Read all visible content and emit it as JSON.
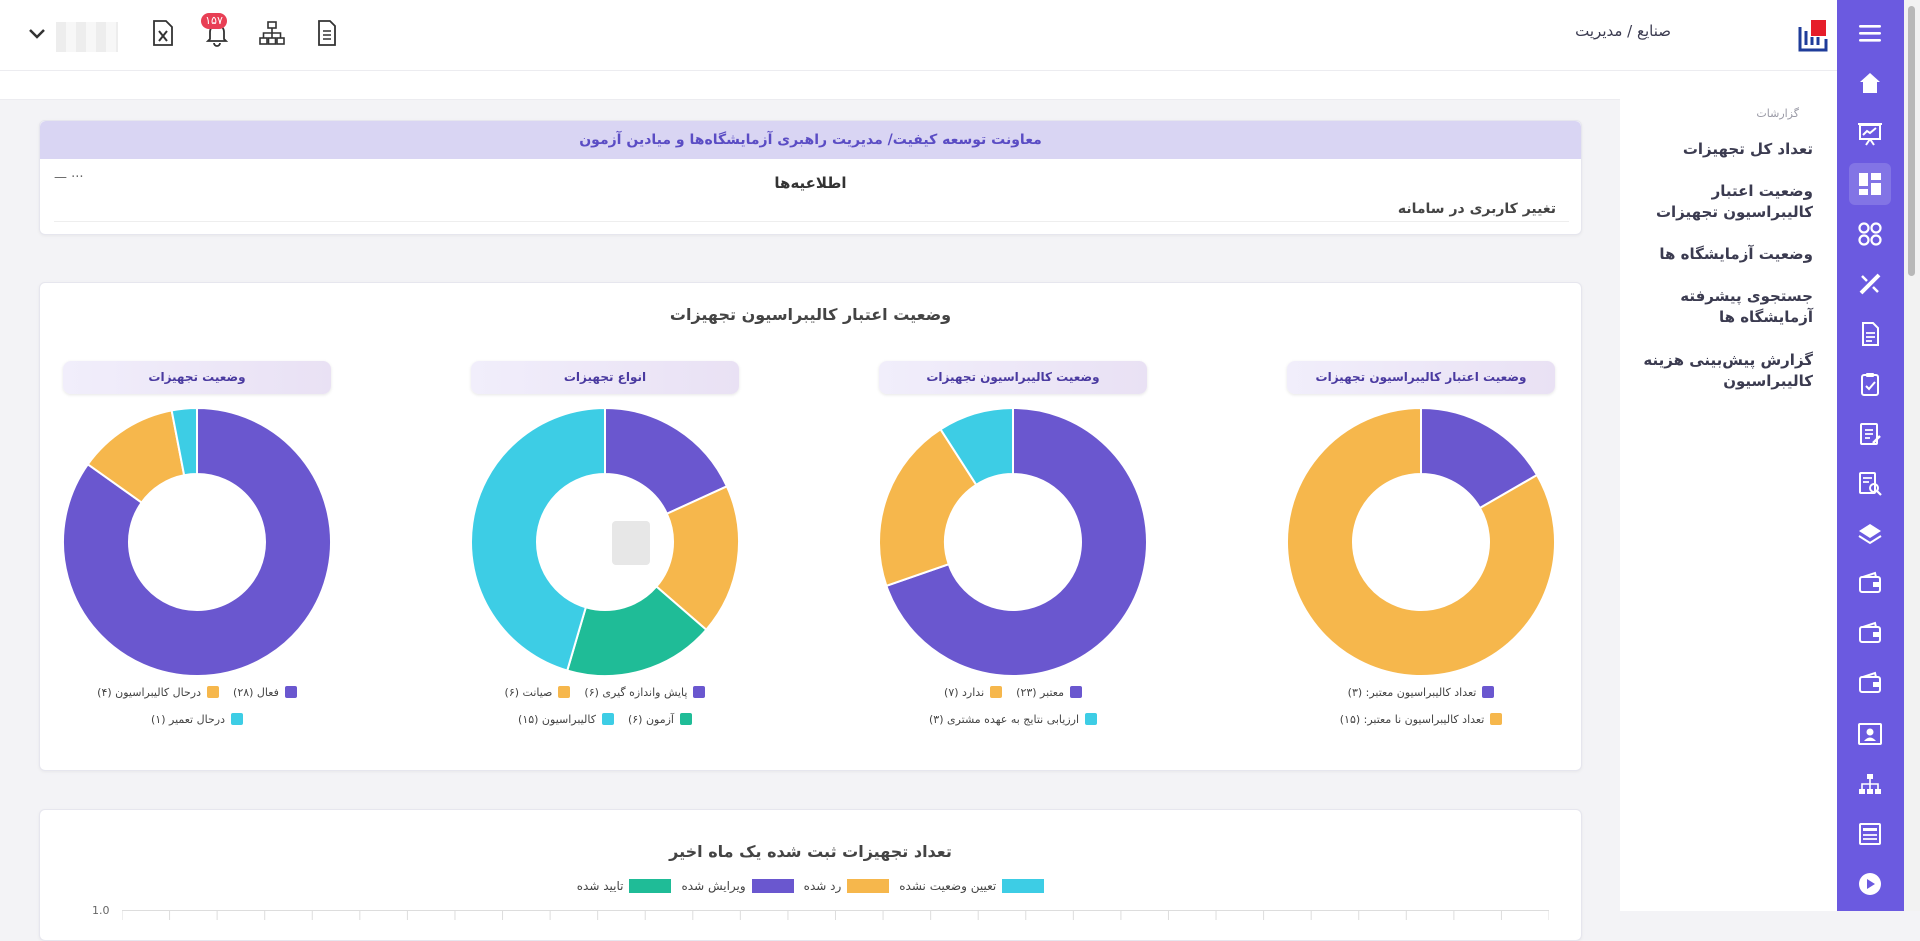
{
  "header": {
    "breadcrumb": "صنایع / مدیریت",
    "notification_count": "۱۵۷"
  },
  "sidebar": {
    "section_label": "گزارشات",
    "items": [
      {
        "label": "تعداد کل تجهیزات"
      },
      {
        "label": "وضعیت اعتبار کالیبراسیون تجهیزات"
      },
      {
        "label": "وضعیت آزمایشگاه ها"
      },
      {
        "label": "جستجوی پیشرفته آزمایشگاه ها"
      },
      {
        "label": "گزارش پیش‌بینی هزینه کالیبراسیون"
      }
    ]
  },
  "notices": {
    "header": "معاونت توسعه کیفیت/ مدیریت راهبری آزمایشگاه‌ها و میادین آزمون",
    "title": "اطلاعیه‌ها",
    "more": "— ···",
    "items": [
      "تغییر کاربری در سامانه"
    ]
  },
  "calibration_card": {
    "title": "وضعیت اعتبار کالیبراسیون تجهیزات"
  },
  "monthly_card": {
    "title": "تعداد تجهیزات ثبت شده یک ماه اخیر"
  },
  "colors": {
    "purple": "#6a57cf",
    "orange": "#f6b74c",
    "cyan": "#3dcde5",
    "teal": "#1fbc97",
    "rail": "#6b5ae0"
  },
  "chart_data": [
    {
      "type": "pie",
      "title": "وضعیت اعتبار کالیبراسیون تجهیزات",
      "categories": [
        "تعداد کالیبراسیون معتبر: (۳)",
        "تعداد کالیبراسیون نا معتبر: (۱۵)"
      ],
      "values": [
        3,
        15
      ],
      "colors": [
        "#6a57cf",
        "#f6b74c"
      ],
      "legend_rows": [
        [
          0
        ],
        [
          1
        ]
      ]
    },
    {
      "type": "pie",
      "title": "وضعیت کالیبراسیون تجهیزات",
      "categories": [
        "معتبر (۲۳)",
        "ندارد (۷)",
        "ارزیابی نتایج به عهده مشتری (۳)"
      ],
      "values": [
        23,
        7,
        3
      ],
      "colors": [
        "#6a57cf",
        "#f6b74c",
        "#3dcde5"
      ],
      "legend_rows": [
        [
          0,
          1
        ],
        [
          2
        ]
      ]
    },
    {
      "type": "pie",
      "title": "انواع تجهیزات",
      "categories": [
        "پایش واندازه گیری (۶)",
        "صیانت (۶)",
        "آزمون (۶)",
        "کالیبراسیون (۱۵)"
      ],
      "values": [
        6,
        6,
        6,
        15
      ],
      "colors": [
        "#6a57cf",
        "#f6b74c",
        "#1fbc97",
        "#3dcde5"
      ],
      "legend_rows": [
        [
          0,
          1
        ],
        [
          2,
          3
        ]
      ]
    },
    {
      "type": "pie",
      "title": "وضعیت تجهیزات",
      "categories": [
        "فعال (۲۸)",
        "درحال کالیبراسیون (۴)",
        "درحال تعمیر (۱)"
      ],
      "values": [
        28,
        4,
        1
      ],
      "colors": [
        "#6a57cf",
        "#f6b74c",
        "#3dcde5"
      ],
      "legend_rows": [
        [
          0,
          1
        ],
        [
          2
        ]
      ]
    },
    {
      "type": "line",
      "title": "تعداد تجهیزات ثبت شده یک ماه اخیر",
      "series": [
        {
          "name": "تعیین وضعیت نشده",
          "color": "#3dcde5",
          "values": []
        },
        {
          "name": "رد شده",
          "color": "#f6b74c",
          "values": []
        },
        {
          "name": "ویرایش شده",
          "color": "#6a57cf",
          "values": []
        },
        {
          "name": "تایید شده",
          "color": "#1fbc97",
          "values": []
        }
      ],
      "y_ticks": [
        "1.0"
      ]
    }
  ]
}
